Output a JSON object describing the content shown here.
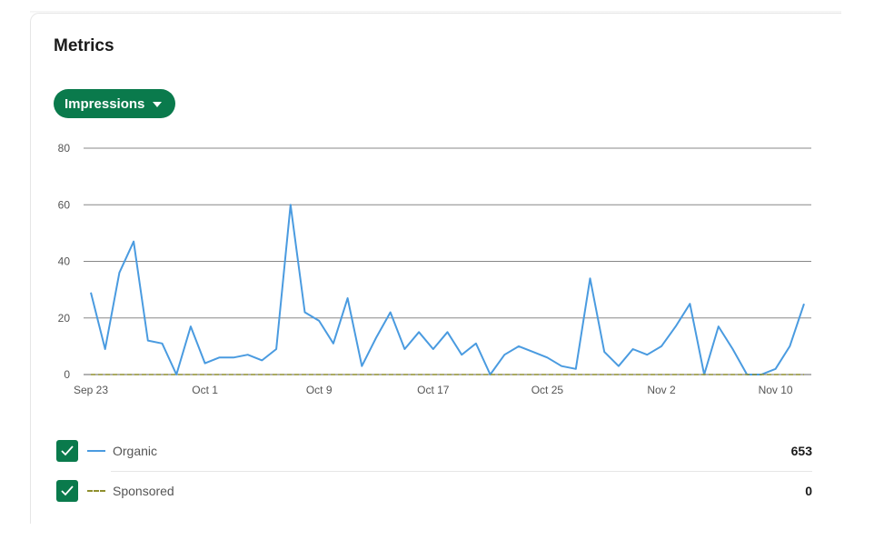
{
  "card": {
    "title": "Metrics",
    "metric_button_label": "Impressions"
  },
  "colors": {
    "accent": "#0a7a4c",
    "organic": "#4a9be0",
    "sponsored": "#8f8f2e",
    "gridline": "#888888"
  },
  "legend": [
    {
      "label": "Organic",
      "value": "653",
      "checked": true,
      "line_style": "solid"
    },
    {
      "label": "Sponsored",
      "value": "0",
      "checked": true,
      "line_style": "dashed"
    }
  ],
  "chart_data": {
    "type": "line",
    "x_start": "Sep 23",
    "x": [
      "Sep 23",
      "Sep 24",
      "Sep 25",
      "Sep 26",
      "Sep 27",
      "Sep 28",
      "Sep 29",
      "Sep 30",
      "Oct 1",
      "Oct 2",
      "Oct 3",
      "Oct 4",
      "Oct 5",
      "Oct 6",
      "Oct 7",
      "Oct 8",
      "Oct 9",
      "Oct 10",
      "Oct 11",
      "Oct 12",
      "Oct 13",
      "Oct 14",
      "Oct 15",
      "Oct 16",
      "Oct 17",
      "Oct 18",
      "Oct 19",
      "Oct 20",
      "Oct 21",
      "Oct 22",
      "Oct 23",
      "Oct 24",
      "Oct 25",
      "Oct 26",
      "Oct 27",
      "Oct 28",
      "Oct 29",
      "Oct 30",
      "Oct 31",
      "Nov 1",
      "Nov 2",
      "Nov 3",
      "Nov 4",
      "Nov 5",
      "Nov 6",
      "Nov 7",
      "Nov 8",
      "Nov 9",
      "Nov 10",
      "Nov 11",
      "Nov 12"
    ],
    "xticks": [
      "Sep 23",
      "Oct 1",
      "Oct 9",
      "Oct 17",
      "Oct 25",
      "Nov 2",
      "Nov 10"
    ],
    "yticks": [
      0,
      20,
      40,
      60,
      80
    ],
    "ylim": [
      0,
      80
    ],
    "grid": true,
    "series": [
      {
        "name": "Organic",
        "values": [
          29,
          9,
          36,
          47,
          12,
          11,
          0,
          17,
          4,
          6,
          6,
          7,
          5,
          9,
          60,
          22,
          19,
          11,
          27,
          3,
          13,
          22,
          9,
          15,
          9,
          15,
          7,
          11,
          0,
          7,
          10,
          8,
          6,
          3,
          2,
          34,
          8,
          3,
          9,
          7,
          10,
          17,
          25,
          0,
          17,
          9,
          0,
          0,
          2,
          10,
          25
        ]
      },
      {
        "name": "Sponsored",
        "values": [
          0,
          0,
          0,
          0,
          0,
          0,
          0,
          0,
          0,
          0,
          0,
          0,
          0,
          0,
          0,
          0,
          0,
          0,
          0,
          0,
          0,
          0,
          0,
          0,
          0,
          0,
          0,
          0,
          0,
          0,
          0,
          0,
          0,
          0,
          0,
          0,
          0,
          0,
          0,
          0,
          0,
          0,
          0,
          0,
          0,
          0,
          0,
          0,
          0,
          0,
          0
        ]
      }
    ]
  }
}
